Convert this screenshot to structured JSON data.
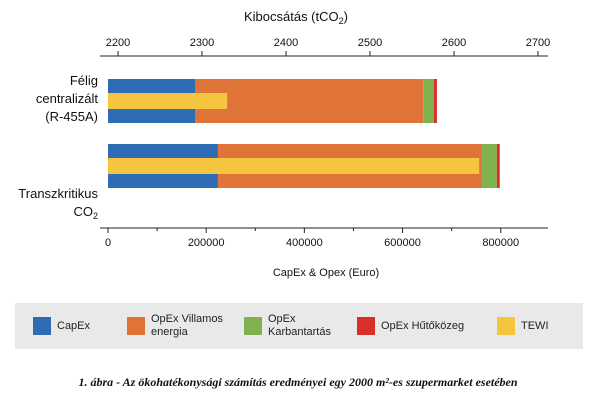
{
  "chart_data": {
    "type": "bar",
    "orientation": "horizontal",
    "stacked": true,
    "categories": [
      "Félig centralizált (R-455A)",
      "Transzkritikus CO2"
    ],
    "category_lines": [
      [
        "Félig",
        "centralizált",
        "(R-455A)"
      ],
      [
        "Transzkritikus",
        "CO2"
      ]
    ],
    "series": [
      {
        "name": "CapEx",
        "values": [
          178000,
          224000
        ],
        "color": "#2e6db4"
      },
      {
        "name": "OpEx Villamos energia",
        "values": [
          464000,
          538000
        ],
        "color": "#e07338"
      },
      {
        "name": "OpEx Karbantartás",
        "values": [
          22000,
          30000
        ],
        "color": "#7fb24f"
      },
      {
        "name": "OpEx Hűtőközeg",
        "values": [
          6000,
          6000
        ],
        "color": "#d9302a"
      }
    ],
    "overlay_series": {
      "name": "TEWI",
      "values": [
        2330,
        2630
      ],
      "color": "#f5c540",
      "axis": "top"
    },
    "xlabel": "CapEx & Opex (Euro)",
    "xlim": [
      0,
      880000
    ],
    "xticks": [
      "0",
      "200000",
      "400000",
      "600000",
      "800000"
    ],
    "xtick_values": [
      0,
      200000,
      400000,
      600000,
      800000
    ],
    "top_axis_label": "Kibocsátás (tCO2)",
    "top_axis_label_main": "Kibocsátás (tCO",
    "top_axis_label_sub": "2",
    "top_axis_label_end": ")",
    "top_xlim": [
      2200,
      2700
    ],
    "top_xticks": [
      "2200",
      "2300",
      "2400",
      "2500",
      "2600",
      "2700"
    ],
    "top_xtick_values": [
      2200,
      2300,
      2400,
      2500,
      2600,
      2700
    ],
    "grid": false
  },
  "legend": {
    "items": [
      {
        "label_lines": [
          "CapEx"
        ],
        "color": "#2e6db4"
      },
      {
        "label_lines": [
          "OpEx Villamos",
          "energia"
        ],
        "color": "#e07338"
      },
      {
        "label_lines": [
          "OpEx",
          "Karbantartás"
        ],
        "color": "#7fb24f"
      },
      {
        "label_lines": [
          "OpEx Hűtőközeg"
        ],
        "color": "#d9302a"
      },
      {
        "label_lines": [
          "TEWI"
        ],
        "color": "#f5c540"
      }
    ]
  },
  "caption": "1. ábra - Az ökohatékonysági számítás eredményei egy 2000 m²-es szupermarket esetében"
}
